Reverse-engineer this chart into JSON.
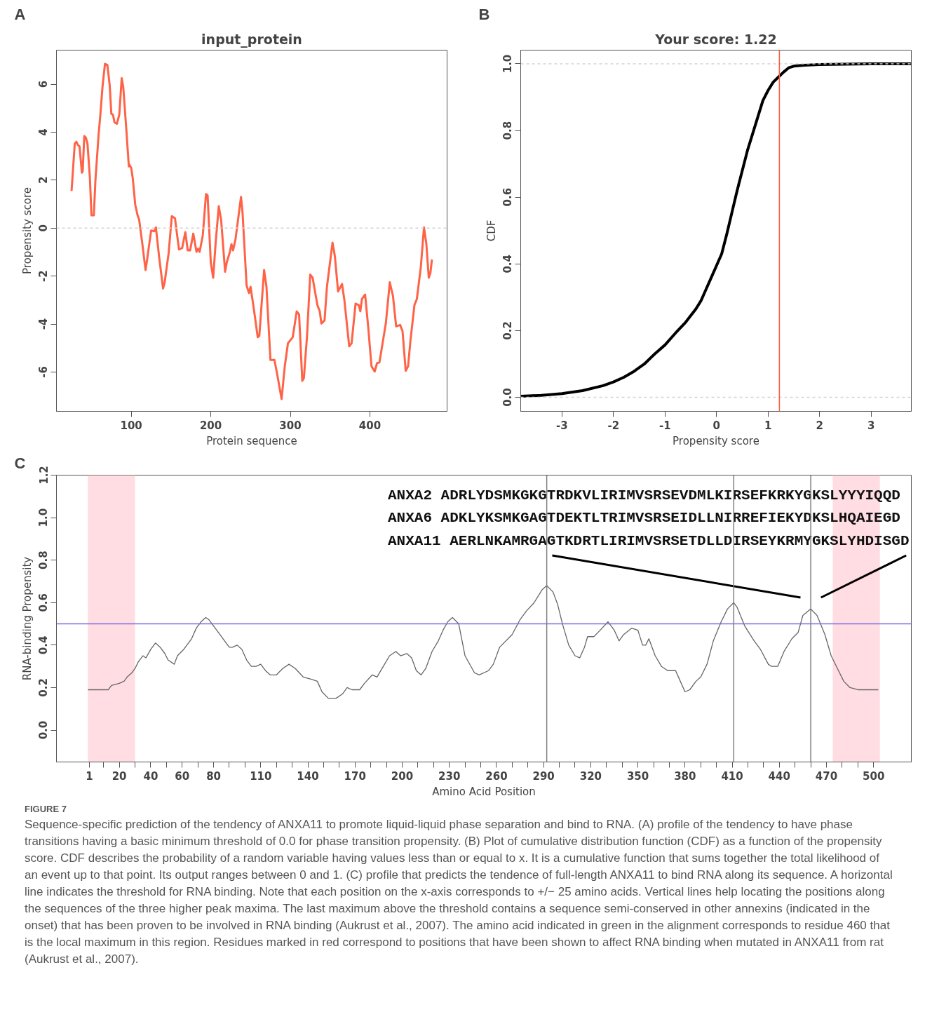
{
  "chart_data": [
    {
      "type": "line",
      "title": "input_protein",
      "xlabel": "Protein sequence",
      "ylabel": "Propensity score",
      "xlim": [
        6,
        497
      ],
      "ylim": [
        -7.64,
        7.42
      ],
      "xticks": [
        100,
        200,
        300,
        400
      ],
      "yticks": [
        -6,
        -4,
        -2,
        0,
        2,
        4,
        6
      ],
      "series": [
        {
          "color": "#ff6347",
          "x": [
            25,
            29,
            31,
            33,
            35,
            38,
            39,
            41,
            43,
            45,
            48,
            50,
            53,
            55,
            59,
            61,
            64,
            67,
            70,
            73,
            75,
            77,
            79,
            82,
            85,
            88,
            90,
            94,
            97,
            98,
            100,
            102,
            105,
            108,
            110,
            114,
            118,
            120,
            125,
            129,
            131,
            135,
            140,
            142,
            147,
            151,
            155,
            160,
            164,
            168,
            171,
            174,
            178,
            182,
            184,
            186,
            190,
            194,
            196,
            200,
            203,
            206,
            210,
            213,
            218,
            220,
            224,
            226,
            228,
            231,
            238,
            240,
            245,
            248,
            250,
            254,
            259,
            261,
            267,
            270,
            275,
            280,
            283,
            289,
            293,
            297,
            303,
            308,
            311,
            315,
            317,
            321,
            325,
            328,
            334,
            337,
            339,
            343,
            346,
            353,
            356,
            360,
            365,
            368,
            374,
            377,
            382,
            386,
            388,
            390,
            394,
            398,
            402,
            406,
            409,
            412,
            420,
            425,
            429,
            433,
            438,
            441,
            445,
            448,
            451,
            456,
            459,
            464,
            468,
            471,
            474,
            476,
            478
          ],
          "values": [
            1.55,
            3.52,
            3.6,
            3.46,
            3.4,
            2.31,
            2.38,
            3.84,
            3.77,
            3.52,
            2.12,
            0.53,
            0.53,
            2.0,
            3.9,
            4.66,
            5.93,
            6.85,
            6.8,
            5.93,
            4.76,
            4.73,
            4.41,
            4.35,
            4.73,
            6.25,
            5.87,
            4.03,
            2.57,
            2.63,
            2.5,
            2.06,
            0.98,
            0.53,
            0.34,
            -0.67,
            -1.75,
            -1.31,
            -0.1,
            -0.13,
            0.03,
            -1.18,
            -2.52,
            -2.26,
            -1.05,
            0.5,
            0.41,
            -0.89,
            -0.83,
            -0.17,
            -0.93,
            -0.93,
            -0.23,
            -0.99,
            -0.86,
            -0.99,
            -0.29,
            1.42,
            1.36,
            -1.44,
            -2.07,
            -0.67,
            0.91,
            0.34,
            -1.82,
            -1.44,
            -0.99,
            -0.67,
            -0.93,
            -0.48,
            1.3,
            0.6,
            -2.39,
            -2.71,
            -2.45,
            -3.34,
            -4.55,
            -4.49,
            -1.75,
            -2.45,
            -5.5,
            -5.5,
            -6.01,
            -7.13,
            -5.76,
            -4.8,
            -4.55,
            -3.47,
            -3.6,
            -6.37,
            -6.26,
            -4.49,
            -1.94,
            -2.07,
            -3.21,
            -3.47,
            -3.98,
            -3.85,
            -2.45,
            -0.61,
            -1.18,
            -2.64,
            -2.33,
            -3.02,
            -4.93,
            -4.8,
            -3.15,
            -3.21,
            -3.47,
            -2.96,
            -2.77,
            -4.17,
            -5.76,
            -5.98,
            -5.63,
            -5.6,
            -3.98,
            -2.26,
            -2.83,
            -4.1,
            -4.04,
            -4.29,
            -5.95,
            -5.76,
            -4.68,
            -3.21,
            -2.96,
            -1.63,
            0.03,
            -0.67,
            -2.07,
            -1.88,
            -1.31
          ]
        }
      ],
      "ref_lines": [
        {
          "axis": "y",
          "value": 0,
          "color": "#d3d3d3",
          "line_style": "dashed"
        }
      ],
      "annotations": [
        "A"
      ]
    },
    {
      "type": "line",
      "title": "Your score: 1.22",
      "xlabel": "Propensity score",
      "ylabel": "CDF",
      "xlim": [
        -3.8,
        3.78
      ],
      "ylim": [
        -0.042,
        1.041
      ],
      "xticks": [
        -3,
        -2,
        -1,
        0,
        1,
        2,
        3
      ],
      "yticks": [
        {
          "value": 0,
          "label": "0.0"
        },
        {
          "value": 0.2,
          "label": "0.2"
        },
        {
          "value": 0.4,
          "label": "0.4"
        },
        {
          "value": 0.6,
          "label": "0.6"
        },
        {
          "value": 0.8,
          "label": "0.8"
        },
        {
          "value": 1,
          "label": "1.0"
        }
      ],
      "series": [
        {
          "color": "#000000",
          "x": [
            -3.8,
            -3.4,
            -3,
            -2.6,
            -2.2,
            -2,
            -1.8,
            -1.6,
            -1.4,
            -1.2,
            -1,
            -0.8,
            -0.6,
            -0.4,
            -0.3,
            -0.2,
            -0.1,
            0,
            0.1,
            0.2,
            0.3,
            0.4,
            0.5,
            0.6,
            0.7,
            0.8,
            0.9,
            1.0,
            1.1,
            1.2,
            1.3,
            1.4,
            1.5,
            1.7,
            2,
            2.5,
            3,
            3.78
          ],
          "values": [
            0.003,
            0.006,
            0.011,
            0.02,
            0.035,
            0.046,
            0.06,
            0.078,
            0.1,
            0.13,
            0.157,
            0.192,
            0.225,
            0.265,
            0.29,
            0.325,
            0.36,
            0.395,
            0.43,
            0.49,
            0.555,
            0.62,
            0.68,
            0.74,
            0.79,
            0.84,
            0.89,
            0.92,
            0.945,
            0.96,
            0.975,
            0.988,
            0.993,
            0.996,
            0.998,
            0.999,
            1.0,
            1.0
          ]
        }
      ],
      "ref_lines": [
        {
          "axis": "y",
          "value": 0,
          "color": "#d3d3d3",
          "line_style": "dashed"
        },
        {
          "axis": "y",
          "value": 1,
          "color": "#d3d3d3",
          "line_style": "dashed"
        },
        {
          "axis": "x",
          "value": 1.22,
          "color": "#ff5a3c",
          "line_style": "solid"
        }
      ],
      "annotations": [
        "B"
      ]
    },
    {
      "type": "line",
      "xlabel": "Amino Acid Position",
      "ylabel": "RNA-binding Propensity",
      "xlim": [
        -20,
        524
      ],
      "ylim": [
        -0.15,
        1.2
      ],
      "xticks": [
        1,
        {
          "value": 10,
          "label": null
        },
        20,
        {
          "value": 30,
          "label": null
        },
        40,
        {
          "value": 50,
          "label": null
        },
        60,
        {
          "value": 70,
          "label": null
        },
        80,
        {
          "value": 90,
          "label": null
        },
        {
          "value": 100,
          "label": null
        },
        110,
        {
          "value": 120,
          "label": null
        },
        {
          "value": 130,
          "label": null
        },
        140,
        {
          "value": 150,
          "label": null
        },
        {
          "value": 160,
          "label": null
        },
        170,
        {
          "value": 180,
          "label": null
        },
        {
          "value": 190,
          "label": null
        },
        200,
        {
          "value": 210,
          "label": null
        },
        {
          "value": 220,
          "label": null
        },
        230,
        {
          "value": 240,
          "label": null
        },
        {
          "value": 250,
          "label": null
        },
        260,
        {
          "value": 270,
          "label": null
        },
        {
          "value": 280,
          "label": null
        },
        290,
        {
          "value": 300,
          "label": null
        },
        {
          "value": 310,
          "label": null
        },
        320,
        {
          "value": 330,
          "label": null
        },
        {
          "value": 340,
          "label": null
        },
        350,
        {
          "value": 360,
          "label": null
        },
        {
          "value": 370,
          "label": null
        },
        380,
        {
          "value": 390,
          "label": null
        },
        {
          "value": 400,
          "label": null
        },
        410,
        {
          "value": 420,
          "label": null
        },
        {
          "value": 430,
          "label": null
        },
        440,
        {
          "value": 450,
          "label": null
        },
        {
          "value": 460,
          "label": null
        },
        470,
        {
          "value": 480,
          "label": null
        },
        {
          "value": 490,
          "label": null
        },
        500
      ],
      "yticks": [
        {
          "value": 0,
          "label": "0.0"
        },
        {
          "value": 0.2,
          "label": "0.2"
        },
        {
          "value": 0.4,
          "label": "0.4"
        },
        {
          "value": 0.6,
          "label": "0.6"
        },
        {
          "value": 0.8,
          "label": "0.8"
        },
        {
          "value": 1,
          "label": "1.0"
        },
        {
          "value": 1.2,
          "label": "1.2"
        }
      ],
      "series": [
        {
          "color": "#666666",
          "x": [
            0,
            13,
            15,
            20,
            23,
            25,
            28,
            30,
            32,
            35,
            37,
            40,
            43,
            46,
            49,
            51,
            55,
            57,
            61,
            64,
            66,
            69,
            72,
            75,
            77,
            80,
            84,
            87,
            90,
            92,
            95,
            98,
            101,
            104,
            107,
            110,
            113,
            116,
            120,
            124,
            128,
            132,
            137,
            142,
            146,
            149,
            153,
            158,
            162,
            165,
            168,
            173,
            176,
            181,
            184,
            188,
            192,
            196,
            199,
            203,
            206,
            209,
            212,
            215,
            219,
            223,
            226,
            229,
            232,
            236,
            240,
            246,
            249,
            255,
            258,
            262,
            270,
            275,
            279,
            284,
            289,
            292,
            296,
            299,
            302,
            306,
            310,
            313,
            316,
            318,
            322,
            326,
            331,
            335,
            338,
            341,
            346,
            350,
            353,
            355,
            357,
            361,
            365,
            369,
            374,
            377,
            380,
            383,
            387,
            390,
            394,
            398,
            403,
            407,
            411,
            413,
            418,
            424,
            428,
            433,
            435,
            439,
            443,
            448,
            452,
            455,
            460,
            464,
            469,
            473,
            477,
            481,
            485,
            490,
            503
          ],
          "values": [
            0.19,
            0.19,
            0.21,
            0.22,
            0.23,
            0.25,
            0.27,
            0.29,
            0.32,
            0.35,
            0.34,
            0.38,
            0.41,
            0.39,
            0.36,
            0.33,
            0.31,
            0.35,
            0.38,
            0.41,
            0.43,
            0.48,
            0.51,
            0.53,
            0.52,
            0.49,
            0.45,
            0.42,
            0.39,
            0.39,
            0.4,
            0.38,
            0.33,
            0.3,
            0.3,
            0.31,
            0.28,
            0.26,
            0.26,
            0.29,
            0.31,
            0.29,
            0.25,
            0.24,
            0.23,
            0.18,
            0.15,
            0.15,
            0.17,
            0.2,
            0.19,
            0.19,
            0.22,
            0.26,
            0.25,
            0.3,
            0.35,
            0.37,
            0.35,
            0.36,
            0.34,
            0.28,
            0.26,
            0.29,
            0.37,
            0.42,
            0.47,
            0.51,
            0.53,
            0.5,
            0.35,
            0.27,
            0.26,
            0.28,
            0.31,
            0.39,
            0.45,
            0.52,
            0.56,
            0.6,
            0.66,
            0.68,
            0.65,
            0.59,
            0.5,
            0.4,
            0.35,
            0.34,
            0.39,
            0.44,
            0.44,
            0.47,
            0.51,
            0.47,
            0.42,
            0.45,
            0.48,
            0.47,
            0.4,
            0.4,
            0.43,
            0.35,
            0.3,
            0.28,
            0.28,
            0.23,
            0.18,
            0.19,
            0.23,
            0.25,
            0.31,
            0.42,
            0.51,
            0.57,
            0.6,
            0.58,
            0.49,
            0.42,
            0.38,
            0.31,
            0.3,
            0.3,
            0.37,
            0.43,
            0.46,
            0.54,
            0.57,
            0.54,
            0.45,
            0.35,
            0.29,
            0.23,
            0.2,
            0.19,
            0.19
          ]
        }
      ],
      "ref_lines": [
        {
          "axis": "y",
          "value": 0.5,
          "color": "#7b6fe0",
          "line_style": "solid"
        },
        {
          "axis": "x",
          "value": 292,
          "color": "#808080",
          "line_style": "solid"
        },
        {
          "axis": "x",
          "value": 411,
          "color": "#808080",
          "line_style": "solid"
        },
        {
          "axis": "x",
          "value": 460,
          "color": "#808080",
          "line_style": "solid"
        }
      ],
      "bands": [
        {
          "axis": "x",
          "from": 0,
          "to": 30,
          "color": "#ffdde3"
        },
        {
          "axis": "x",
          "from": 474,
          "to": 504,
          "color": "#ffdde3"
        }
      ],
      "annotations": [
        "C",
        "ANXA2  ADRLYDSMKGKGTRDKVLIRIMVSRSEVDMLKIRSEFKRKYGKSLYYYIQQD",
        "ANXA6  ADKLYKSMKGAGTDEKTLTRIMVSRSEIDLLNIRREFIEKYDKSLHQAIEGD",
        "ANXA11 AERLNKAMRGAGTKDRTLIRIMVSRSETDLLDIRSEYKRMYGKSLYHDISGD",
        "FIGURE 7",
        "Sequence-specific prediction of the tendency of ANXA11 to promote liquid-liquid phase separation and bind to RNA. (A) profile of the tendency to have phase transitions having a basic minimum threshold of 0.0 for phase transition propensity. (B) Plot of cumulative distribution function (CDF) as a function of the propensity score. CDF describes the probability of a random variable having values less than or equal to x. It is a cumulative function that sums together the total likelihood of an event up to that point. Its output ranges between 0 and 1. (C) profile that predicts the tendence of full-length ANXA11 to bind RNA along its sequence. A horizontal line indicates the threshold for RNA binding. Note that each position on the x-axis corresponds to +/− 25 amino acids. Vertical lines help locating the positions along the sequences of the three higher peak maxima. The last maximum above the threshold contains a sequence semi-conserved in other annexins (indicated in the onset) that has been proven to be involved in RNA binding (Aukrust et al., 2007). The amino acid indicated in green in the alignment corresponds to residue 460 that is the local maximum in this region. Residues marked in red correspond to positions that have been shown to affect RNA binding when mutated in ANXA11 from rat (Aukrust et al., 2007)."
      ]
    }
  ]
}
